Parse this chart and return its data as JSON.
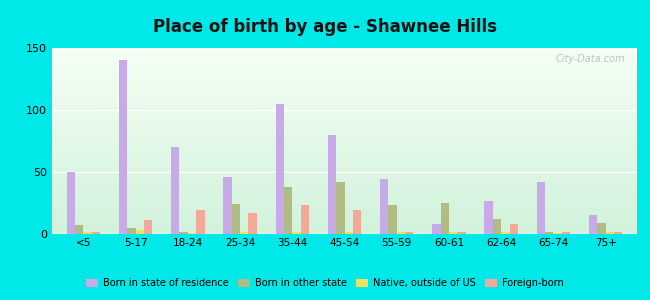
{
  "title": "Place of birth by age - Shawnee Hills",
  "categories": [
    "<5",
    "5-17",
    "18-24",
    "25-34",
    "35-44",
    "45-54",
    "55-59",
    "60-61",
    "62-64",
    "65-74",
    "75+"
  ],
  "series": {
    "Born in state of residence": [
      50,
      140,
      70,
      46,
      105,
      80,
      44,
      8,
      27,
      42,
      15
    ],
    "Born in other state": [
      7,
      5,
      2,
      24,
      38,
      42,
      23,
      25,
      12,
      2,
      9
    ],
    "Native, outside of US": [
      2,
      3,
      1,
      2,
      2,
      2,
      2,
      2,
      2,
      1,
      2
    ],
    "Foreign-born": [
      2,
      11,
      19,
      17,
      23,
      19,
      2,
      2,
      8,
      2,
      2
    ]
  },
  "colors": {
    "Born in state of residence": "#c8aae8",
    "Born in other state": "#b0bc84",
    "Native, outside of US": "#f0e060",
    "Foreign-born": "#f4a898"
  },
  "ylim": [
    0,
    150
  ],
  "yticks": [
    0,
    50,
    100,
    150
  ],
  "outer_bg": "#00e8e8",
  "plot_bg_top": "#f5fff5",
  "plot_bg_bottom": "#e0f5e8",
  "bar_width": 0.16,
  "watermark": "City-Data.com"
}
